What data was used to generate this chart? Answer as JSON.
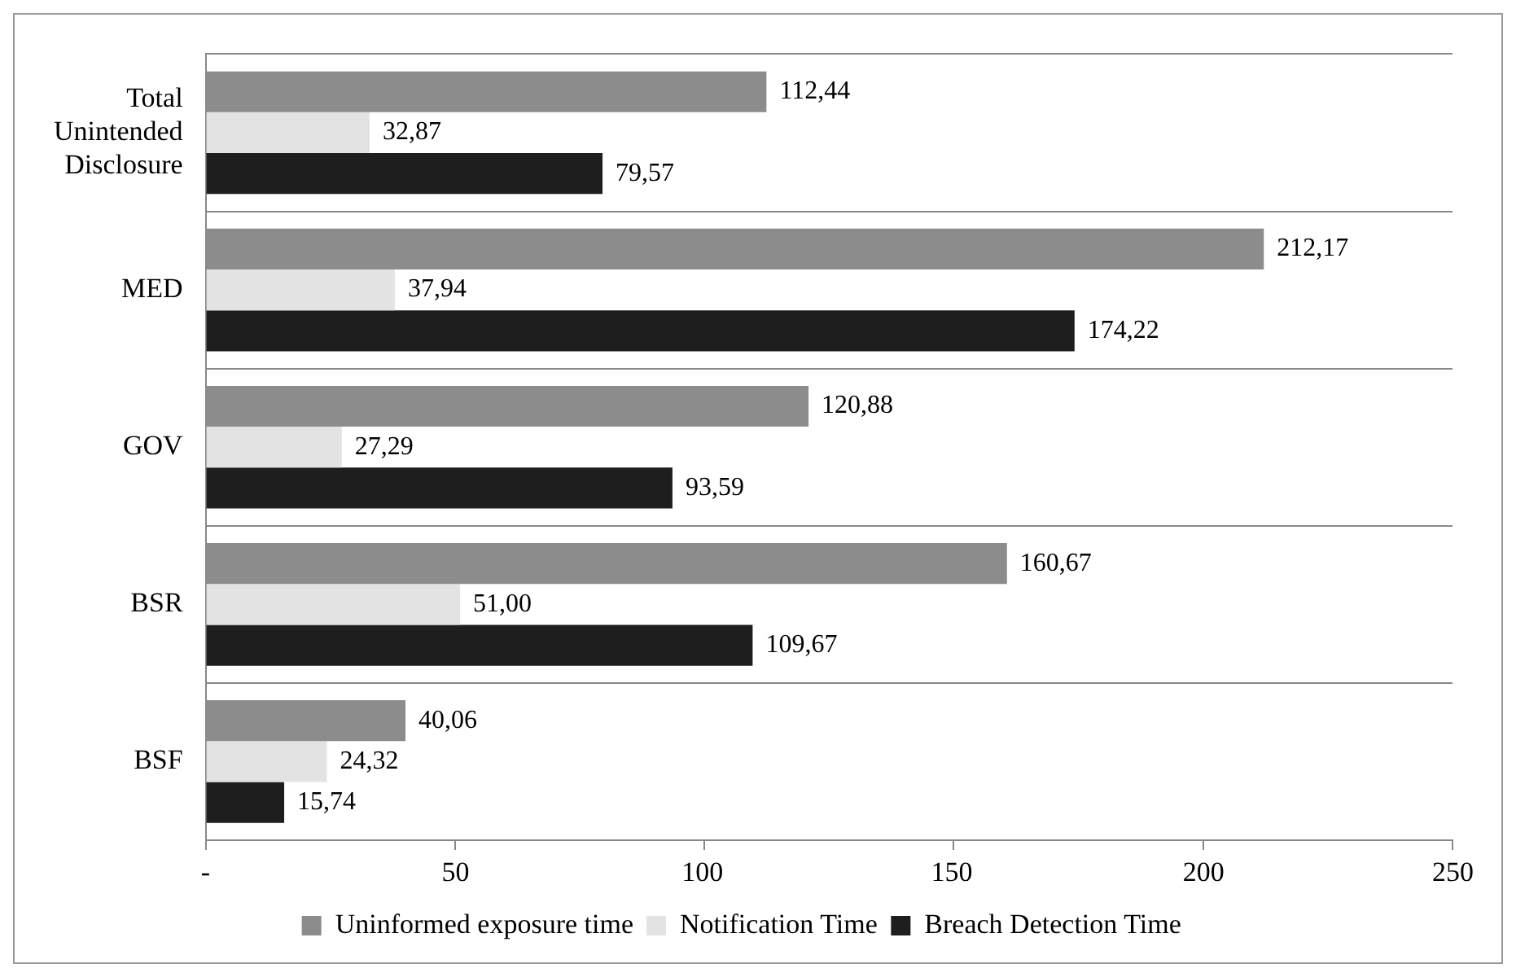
{
  "chart_data": {
    "type": "bar",
    "orientation": "horizontal",
    "categories": [
      "Total Unintended Disclosure",
      "MED",
      "GOV",
      "BSR",
      "BSF"
    ],
    "series": [
      {
        "name": "Uninformed exposure time",
        "color": "#8c8c8c",
        "values": [
          112.44,
          212.17,
          120.88,
          160.67,
          40.06
        ],
        "value_labels": [
          "112,44",
          "212,17",
          "120,88",
          "160,67",
          "40,06"
        ]
      },
      {
        "name": "Notification Time",
        "color": "#e3e3e3",
        "values": [
          32.87,
          37.94,
          27.29,
          51.0,
          24.32
        ],
        "value_labels": [
          "32,87",
          "37,94",
          "27,29",
          "51,00",
          "24,32"
        ]
      },
      {
        "name": "Breach Detection Time",
        "color": "#1e1e1e",
        "values": [
          79.57,
          174.22,
          93.59,
          109.67,
          15.74
        ],
        "value_labels": [
          "79,57",
          "174,22",
          "93,59",
          "109,67",
          "15,74"
        ]
      }
    ],
    "xlim": [
      0,
      250
    ],
    "xticks": [
      {
        "value": 0,
        "label": "-"
      },
      50,
      100,
      150,
      200,
      250
    ],
    "grid": "y",
    "legend": "bottom"
  }
}
